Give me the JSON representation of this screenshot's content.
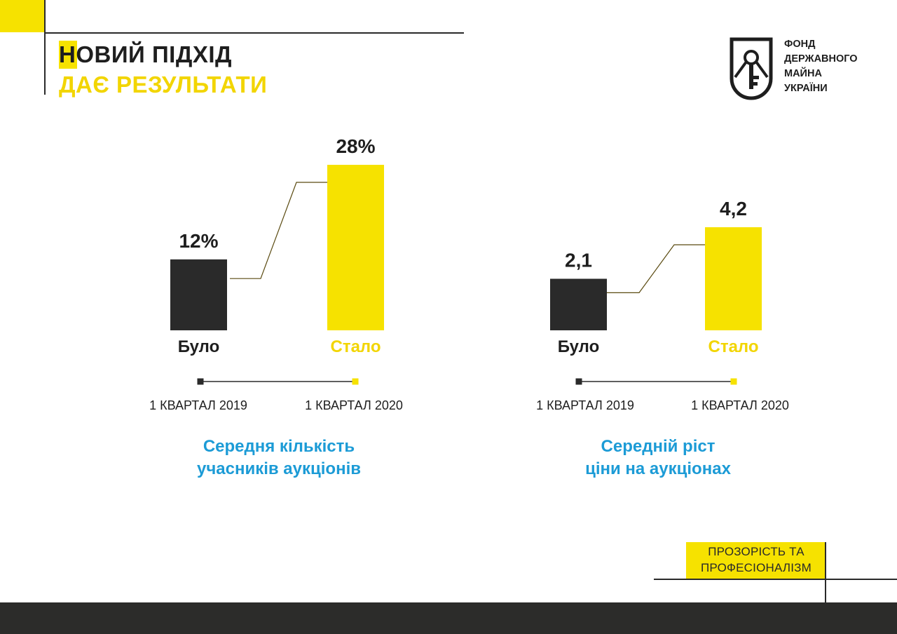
{
  "header": {
    "title_line1": "НОВИЙ ПІДХІД",
    "title_line2": "ДАЄ РЕЗУЛЬТАТИ"
  },
  "logo": {
    "icon": "key-shield-icon",
    "lines": [
      "ФОНД",
      "ДЕРЖАВНОГО",
      "МАЙНА",
      "УКРАЇНИ"
    ]
  },
  "colors": {
    "accent": "#f6e200",
    "dark": "#2a2a2a",
    "title_blue": "#1c9bd6"
  },
  "chart_data": [
    {
      "type": "bar",
      "categories": [
        "Було",
        "Стало"
      ],
      "values": [
        12,
        28
      ],
      "value_labels": [
        "12%",
        "28%"
      ],
      "periods": [
        "1 КВАРТАЛ 2019",
        "1 КВАРТАЛ 2020"
      ],
      "title_lines": [
        "Середня кількість",
        "учасників аукціонів"
      ],
      "bar_colors": [
        "#2a2a2a",
        "#f6e200"
      ],
      "category_colors": [
        "#1e1e1e",
        "#f2d500"
      ]
    },
    {
      "type": "bar",
      "categories": [
        "Було",
        "Стало"
      ],
      "values": [
        2.1,
        4.2
      ],
      "value_labels": [
        "2,1",
        "4,2"
      ],
      "periods": [
        "1 КВАРТАЛ 2019",
        "1 КВАРТАЛ 2020"
      ],
      "title_lines": [
        "Середній ріст",
        "ціни на аукціонах"
      ],
      "bar_colors": [
        "#2a2a2a",
        "#f6e200"
      ],
      "category_colors": [
        "#1e1e1e",
        "#f2d500"
      ]
    }
  ],
  "footer": {
    "tag_lines": [
      "ПРОЗОРІСТЬ ТА",
      "ПРОФЕСІОНАЛІЗМ"
    ]
  }
}
